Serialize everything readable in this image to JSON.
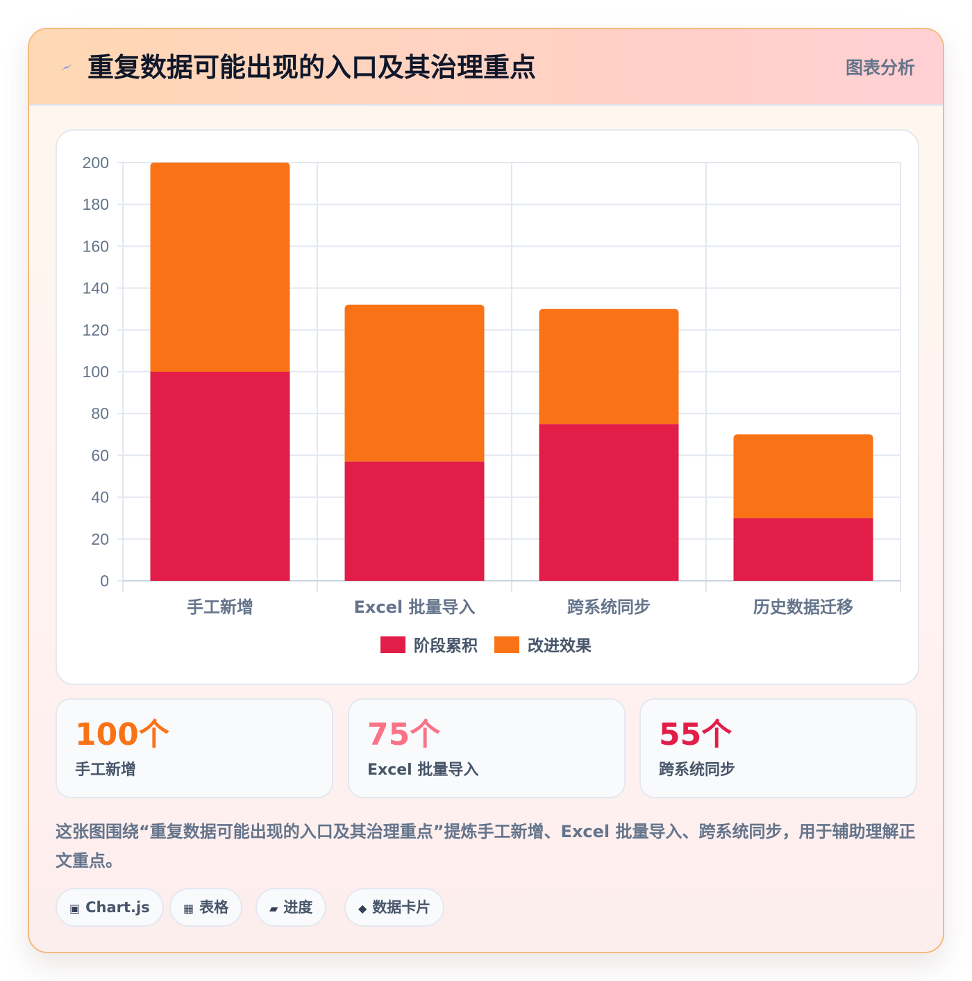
{
  "header": {
    "title": "重复数据可能出现的入口及其治理重点",
    "tag": "图表分析",
    "icon": "lightning-icon"
  },
  "chart_data": {
    "type": "bar",
    "stacked": true,
    "categories": [
      "手工新增",
      "Excel 批量导入",
      "跨系统同步",
      "历史数据迁移"
    ],
    "series": [
      {
        "name": "阶段累积",
        "color": "#e11d48",
        "values": [
          100,
          57,
          75,
          30
        ]
      },
      {
        "name": "改进效果",
        "color": "#f97316",
        "values": [
          100,
          75,
          55,
          40
        ]
      }
    ],
    "ylim": [
      0,
      200
    ],
    "yticks": [
      0,
      20,
      40,
      60,
      80,
      100,
      120,
      140,
      160,
      180,
      200
    ],
    "grid": true,
    "legend_position": "bottom"
  },
  "stats": [
    {
      "value": "100个",
      "label": "手工新增",
      "color": "#f97316"
    },
    {
      "value": "75个",
      "label": "Excel 批量导入",
      "color": "#fb7185"
    },
    {
      "value": "55个",
      "label": "跨系统同步",
      "color": "#e11d48"
    }
  ],
  "description": "这张图围绕“重复数据可能出现的入口及其治理重点”提炼手工新增、Excel 批量导入、跨系统同步，用于辅助理解正文重点。",
  "pills": [
    {
      "icon": "▣",
      "label": "Chart.js"
    },
    {
      "icon": "▦",
      "label": "表格"
    },
    {
      "icon": "▰",
      "label": "进度"
    },
    {
      "icon": "◆",
      "label": "数据卡片"
    }
  ]
}
